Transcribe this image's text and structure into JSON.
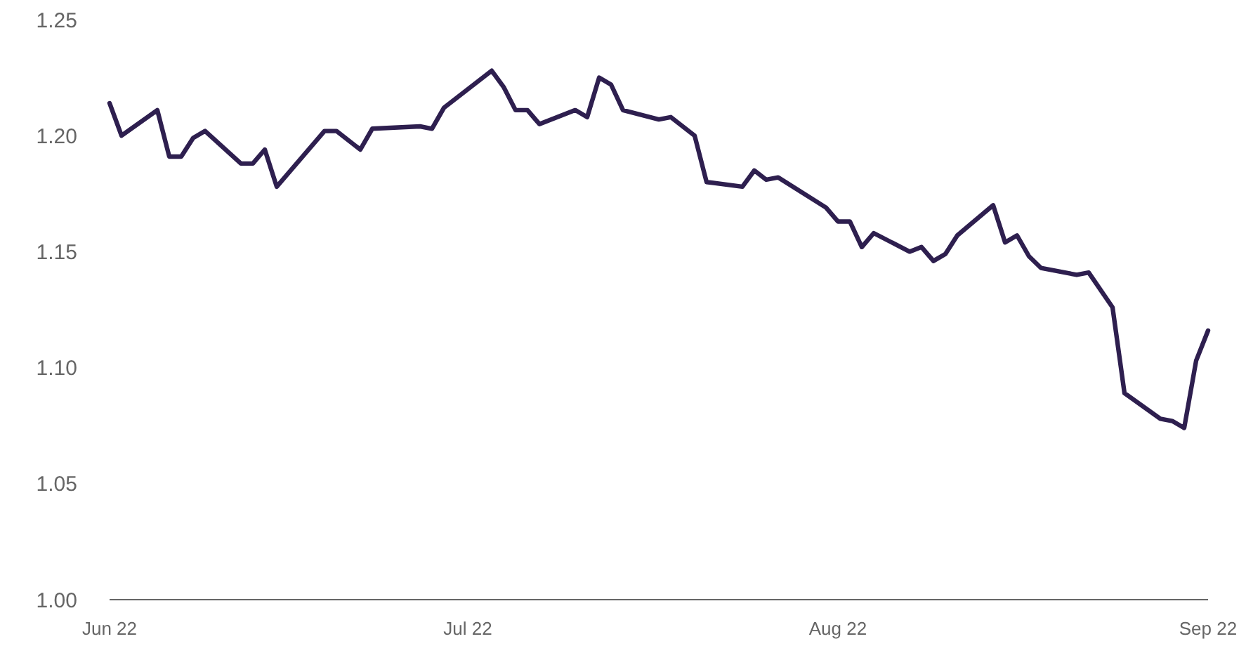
{
  "chart_data": {
    "type": "line",
    "x": [
      "2022-06-01",
      "2022-06-02",
      "2022-06-05",
      "2022-06-06",
      "2022-06-07",
      "2022-06-08",
      "2022-06-09",
      "2022-06-12",
      "2022-06-13",
      "2022-06-14",
      "2022-06-15",
      "2022-06-19",
      "2022-06-20",
      "2022-06-22",
      "2022-06-23",
      "2022-06-27",
      "2022-06-28",
      "2022-06-29",
      "2022-07-03",
      "2022-07-04",
      "2022-07-05",
      "2022-07-06",
      "2022-07-07",
      "2022-07-10",
      "2022-07-11",
      "2022-07-12",
      "2022-07-13",
      "2022-07-14",
      "2022-07-17",
      "2022-07-18",
      "2022-07-20",
      "2022-07-21",
      "2022-07-24",
      "2022-07-25",
      "2022-07-26",
      "2022-07-27",
      "2022-07-31",
      "2022-08-01",
      "2022-08-02",
      "2022-08-03",
      "2022-08-04",
      "2022-08-07",
      "2022-08-08",
      "2022-08-09",
      "2022-08-10",
      "2022-08-11",
      "2022-08-14",
      "2022-08-15",
      "2022-08-16",
      "2022-08-17",
      "2022-08-18",
      "2022-08-21",
      "2022-08-22",
      "2022-08-24",
      "2022-08-25",
      "2022-08-28",
      "2022-08-29",
      "2022-08-30",
      "2022-08-31",
      "2022-09-01"
    ],
    "series": [
      {
        "color": "#2e1f4f",
        "values": [
          1.214,
          1.2,
          1.211,
          1.191,
          1.191,
          1.199,
          1.202,
          1.188,
          1.188,
          1.194,
          1.178,
          1.202,
          1.202,
          1.194,
          1.203,
          1.204,
          1.203,
          1.212,
          1.228,
          1.221,
          1.211,
          1.211,
          1.205,
          1.211,
          1.208,
          1.225,
          1.222,
          1.211,
          1.207,
          1.208,
          1.2,
          1.18,
          1.178,
          1.185,
          1.181,
          1.182,
          1.169,
          1.163,
          1.163,
          1.152,
          1.158,
          1.15,
          1.152,
          1.146,
          1.149,
          1.157,
          1.17,
          1.154,
          1.157,
          1.148,
          1.143,
          1.14,
          1.141,
          1.126,
          1.089,
          1.078,
          1.077,
          1.074,
          1.103,
          1.116
        ]
      }
    ],
    "xlim": [
      "2022-06-01",
      "2022-09-01"
    ],
    "xticks": [
      {
        "value": "2022-06-01",
        "label": "Jun 22"
      },
      {
        "value": "2022-07-01",
        "label": "Jul 22"
      },
      {
        "value": "2022-08-01",
        "label": "Aug 22"
      },
      {
        "value": "2022-09-01",
        "label": "Sep 22"
      }
    ],
    "ylim": [
      1.0,
      1.25
    ],
    "yticks": [
      {
        "value": 1.0,
        "label": "1.00"
      },
      {
        "value": 1.05,
        "label": "1.05"
      },
      {
        "value": 1.1,
        "label": "1.10"
      },
      {
        "value": 1.15,
        "label": "1.15"
      },
      {
        "value": 1.2,
        "label": "1.20"
      },
      {
        "value": 1.25,
        "label": "1.25"
      }
    ],
    "grid": false,
    "marker": "none",
    "line_style": "solid"
  }
}
